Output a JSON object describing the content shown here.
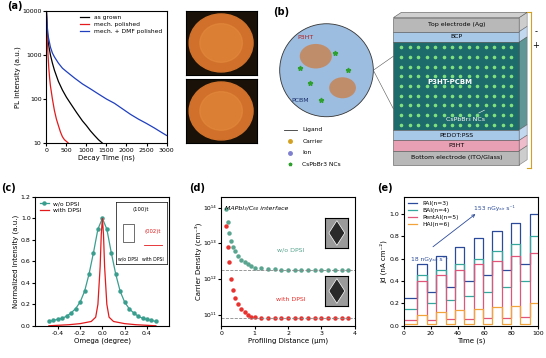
{
  "chart_data": [
    {
      "label": "(a)",
      "type": "line",
      "xlabel": "Decay Time (ns)",
      "ylabel": "PL Intensity (a.u.)",
      "log": "y",
      "xlim": [
        0,
        3000
      ],
      "ylim": [
        10,
        10000
      ],
      "xticks": [
        0,
        500,
        1000,
        1500,
        2000,
        2500,
        3000
      ],
      "yticks": [
        10,
        100,
        1000,
        10000
      ],
      "legend": "upper right",
      "series": [
        {
          "name": "as grown",
          "color": "#000000",
          "line_style": "solid",
          "x": [
            0,
            25,
            50,
            100,
            150,
            200,
            300,
            400,
            500,
            600,
            750,
            900,
            1000,
            1100,
            1200,
            1300,
            1400
          ],
          "values": [
            10000,
            3000,
            1800,
            1000,
            650,
            450,
            250,
            160,
            110,
            80,
            50,
            32,
            25,
            19,
            15,
            12,
            10
          ]
        },
        {
          "name": "mech. polished",
          "color": "#e41a1c",
          "line_style": "solid",
          "x": [
            0,
            20,
            40,
            60,
            80,
            100,
            150,
            200,
            250,
            300,
            350,
            400,
            450,
            500,
            550
          ],
          "values": [
            10000,
            2500,
            1000,
            500,
            300,
            200,
            100,
            55,
            35,
            25,
            18,
            14,
            12,
            11,
            10
          ]
        },
        {
          "name": "mech. + DMF polished",
          "color": "#1f3fbf",
          "line_style": "solid",
          "x": [
            0,
            25,
            50,
            100,
            150,
            200,
            300,
            400,
            500,
            700,
            900,
            1100,
            1300,
            1500,
            1700,
            1900,
            2100,
            2300,
            2500,
            2700,
            2900,
            3000
          ],
          "values": [
            10000,
            4000,
            2500,
            1500,
            1100,
            900,
            650,
            500,
            420,
            300,
            220,
            170,
            130,
            100,
            80,
            60,
            45,
            35,
            28,
            22,
            17,
            15
          ]
        }
      ]
    },
    {
      "label": "(c)",
      "type": "line",
      "xlabel": "Omega (degree)",
      "ylabel": "Normalized Intensity (a.u.)",
      "xlim": [
        -0.6,
        0.6
      ],
      "ylim": [
        0.0,
        1.2
      ],
      "xticks": [
        -0.4,
        -0.2,
        0.0,
        0.2,
        0.4
      ],
      "yticks": [
        0.0,
        0.2,
        0.4,
        0.6,
        0.8,
        1.0,
        1.2
      ],
      "legend": "upper left",
      "inset": {
        "texts": [
          "(100)t",
          "(002)t"
        ],
        "categories": [
          "w/o DPSI",
          "with DPSI"
        ]
      },
      "series": [
        {
          "name": "w/o DPSI",
          "color": "#3a9e8f",
          "marker": "circle",
          "line_style": "solid",
          "x": [
            -0.48,
            -0.44,
            -0.4,
            -0.36,
            -0.32,
            -0.28,
            -0.24,
            -0.2,
            -0.16,
            -0.12,
            -0.08,
            -0.04,
            0.0,
            0.04,
            0.08,
            0.12,
            0.16,
            0.2,
            0.24,
            0.28,
            0.32,
            0.36,
            0.4,
            0.44,
            0.48
          ],
          "values": [
            0.04,
            0.05,
            0.06,
            0.07,
            0.09,
            0.12,
            0.16,
            0.22,
            0.32,
            0.48,
            0.68,
            0.9,
            1.0,
            0.9,
            0.68,
            0.48,
            0.32,
            0.22,
            0.16,
            0.12,
            0.09,
            0.07,
            0.06,
            0.05,
            0.04
          ]
        },
        {
          "name": "with DPSI",
          "color": "#e31a1c",
          "marker": "none",
          "line_style": "solid",
          "x": [
            -0.48,
            -0.3,
            -0.2,
            -0.1,
            -0.06,
            -0.04,
            -0.02,
            -0.01,
            0.0,
            0.01,
            0.02,
            0.04,
            0.06,
            0.1,
            0.2,
            0.3,
            0.48
          ],
          "values": [
            0.0,
            0.01,
            0.02,
            0.04,
            0.08,
            0.2,
            0.55,
            0.85,
            1.0,
            0.85,
            0.55,
            0.2,
            0.08,
            0.04,
            0.02,
            0.01,
            0.0
          ]
        }
      ]
    },
    {
      "label": "(d)",
      "type": "scatter",
      "xlabel": "Profiling Distance (μm)",
      "ylabel": "Carrier Density (cm⁻³)",
      "title": "MAPbI₃/C₆₀ interface",
      "log": "y",
      "xlim": [
        0,
        4
      ],
      "ylim": [
        50000000000.0,
        200000000000000.0
      ],
      "xticks": [
        0,
        1,
        2,
        3,
        4
      ],
      "yticks": [
        {
          "value": 100000000000.0,
          "label": "10¹¹"
        },
        {
          "value": 1000000000000.0,
          "label": "10¹²"
        },
        {
          "value": 10000000000000.0,
          "label": "10¹³"
        },
        {
          "value": 100000000000000.0,
          "label": "10¹⁴"
        }
      ],
      "hlines": [
        1800000000000.0,
        80000000000.0
      ],
      "x": [
        0.15,
        0.2,
        0.25,
        0.3,
        0.35,
        0.4,
        0.5,
        0.6,
        0.7,
        0.8,
        0.9,
        1.0,
        1.2,
        1.4,
        1.6,
        1.8,
        2.0,
        2.2,
        2.4,
        2.6,
        2.8,
        3.0,
        3.2,
        3.4,
        3.6,
        3.8
      ],
      "series": [
        {
          "name": "w/o DPSI",
          "color": "#5aa58f",
          "marker": "circle",
          "values": [
            90000000000000.0,
            40000000000000.0,
            20000000000000.0,
            12000000000000.0,
            8000000000000.0,
            6000000000000.0,
            4500000000000.0,
            3500000000000.0,
            3000000000000.0,
            2600000000000.0,
            2300000000000.0,
            2100000000000.0,
            2000000000000.0,
            1900000000000.0,
            1900000000000.0,
            1800000000000.0,
            1800000000000.0,
            1800000000000.0,
            1800000000000.0,
            1800000000000.0,
            1800000000000.0,
            1800000000000.0,
            1800000000000.0,
            1800000000000.0,
            1800000000000.0,
            1800000000000.0
          ]
        },
        {
          "name": "with DPSI",
          "color": "#e8322e",
          "marker": "circle",
          "values": [
            30000000000000.0,
            8000000000000.0,
            3000000000000.0,
            1000000000000.0,
            500000000000.0,
            300000000000.0,
            200000000000.0,
            150000000000.0,
            120000000000.0,
            100000000000.0,
            90000000000.0,
            90000000000.0,
            85000000000.0,
            80000000000.0,
            80000000000.0,
            80000000000.0,
            80000000000.0,
            80000000000.0,
            80000000000.0,
            80000000000.0,
            80000000000.0,
            80000000000.0,
            80000000000.0,
            80000000000.0,
            80000000000.0,
            80000000000.0
          ]
        }
      ]
    },
    {
      "label": "(e)",
      "type": "line",
      "xlabel": "Time (s)",
      "ylabel": "Jd (nA cm⁻²)",
      "xlim": [
        0,
        100
      ],
      "ylim": [
        0.0,
        1.15
      ],
      "xticks": [
        0,
        20,
        40,
        60,
        80,
        100
      ],
      "yticks": [
        0.0,
        0.2,
        0.4,
        0.6,
        0.8,
        1.0
      ],
      "legend": "upper left",
      "annotations": [
        "18 nGyₐᵢᵣ s⁻¹",
        "153 nGyₐᵢᵣ s⁻¹"
      ],
      "x": [
        0,
        10,
        10,
        17,
        17,
        24,
        24,
        31,
        31,
        38,
        38,
        45,
        45,
        52,
        52,
        59,
        59,
        66,
        66,
        73,
        73,
        80,
        80,
        87,
        87,
        94,
        94,
        100
      ],
      "series": [
        {
          "name": "PAI(n=3)",
          "color": "#2b4a9a",
          "line_style": "solid",
          "values": [
            0.25,
            0.25,
            0.55,
            0.55,
            0.3,
            0.3,
            0.62,
            0.62,
            0.35,
            0.35,
            0.7,
            0.7,
            0.4,
            0.4,
            0.78,
            0.78,
            0.45,
            0.45,
            0.85,
            0.85,
            0.5,
            0.5,
            0.92,
            0.92,
            0.55,
            0.55,
            1.0,
            1.0
          ]
        },
        {
          "name": "BAI(n=4)",
          "color": "#35a79c",
          "line_style": "solid",
          "values": [
            0.15,
            0.15,
            0.45,
            0.45,
            0.2,
            0.2,
            0.5,
            0.5,
            0.23,
            0.23,
            0.55,
            0.55,
            0.27,
            0.27,
            0.6,
            0.6,
            0.3,
            0.3,
            0.67,
            0.67,
            0.35,
            0.35,
            0.73,
            0.73,
            0.4,
            0.4,
            0.8,
            0.8
          ]
        },
        {
          "name": "PentAI(n=5)",
          "color": "#e0567a",
          "line_style": "solid",
          "values": [
            0.05,
            0.05,
            0.4,
            0.4,
            0.05,
            0.05,
            0.45,
            0.45,
            0.06,
            0.06,
            0.5,
            0.5,
            0.06,
            0.06,
            0.55,
            0.55,
            0.07,
            0.07,
            0.58,
            0.58,
            0.07,
            0.07,
            0.62,
            0.62,
            0.08,
            0.08,
            0.65,
            0.65
          ]
        },
        {
          "name": "HAI(n=6)",
          "color": "#f2a33a",
          "line_style": "solid",
          "values": [
            0.02,
            0.02,
            0.1,
            0.1,
            0.02,
            0.02,
            0.12,
            0.12,
            0.02,
            0.02,
            0.14,
            0.14,
            0.02,
            0.02,
            0.15,
            0.15,
            0.02,
            0.02,
            0.17,
            0.17,
            0.02,
            0.02,
            0.18,
            0.18,
            0.02,
            0.02,
            0.2,
            0.2
          ]
        }
      ]
    }
  ],
  "diagram": {
    "label": "(b)",
    "zoom": {
      "top": "P3HT",
      "bottom": "PCBM"
    },
    "legend_items": [
      "Ligand",
      "Carrier",
      "Ion",
      "CsPbBr3 NCs"
    ],
    "layers": [
      "Top electrode (Ag)",
      "BCP",
      "P3HT-PCBM",
      "PEDOT:PSS",
      "P3HT",
      "Bottom electrode (ITO/Glass)"
    ],
    "nc_label": "CsPbBr₃ NCs",
    "polarity": [
      "-",
      "+"
    ]
  }
}
